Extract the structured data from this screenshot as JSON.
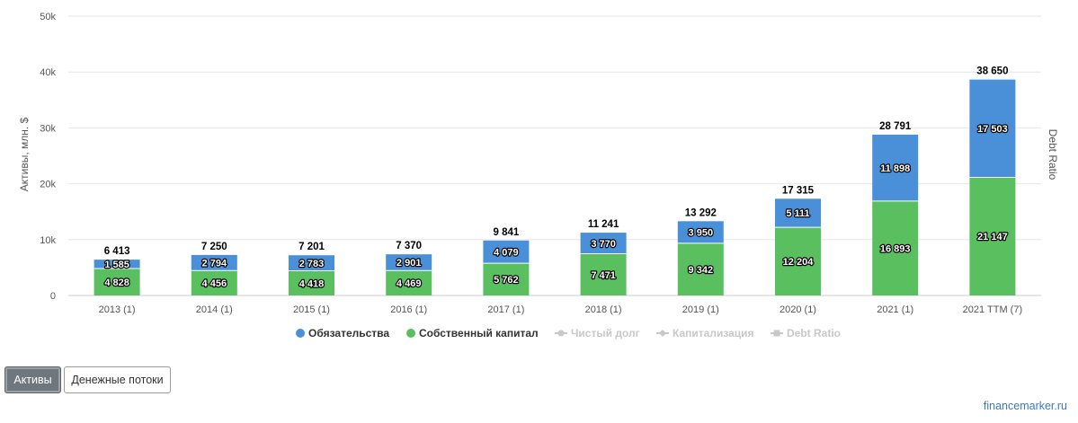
{
  "colors": {
    "liabilities": "#4a90d9",
    "equity": "#5abf5f",
    "inactive_legend": "#c8c8c8",
    "grid": "#e6e6e6",
    "credit_link": "#3a78c3"
  },
  "chart_data": {
    "type": "bar",
    "stacked": true,
    "categories": [
      "2013 (1)",
      "2014 (1)",
      "2015 (1)",
      "2016 (1)",
      "2017 (1)",
      "2018 (1)",
      "2019 (1)",
      "2020 (1)",
      "2021 (1)",
      "2021 TTM (7)"
    ],
    "series": [
      {
        "name": "Собственный капитал",
        "values": [
          4828,
          4456,
          4418,
          4469,
          5762,
          7471,
          9342,
          12204,
          16893,
          21147
        ],
        "labels": [
          "4 828",
          "4 456",
          "4 418",
          "4 469",
          "5 762",
          "7 471",
          "9 342",
          "12 204",
          "16 893",
          "21 147"
        ]
      },
      {
        "name": "Обязательства",
        "values": [
          1585,
          2794,
          2783,
          2901,
          4079,
          3770,
          3950,
          5111,
          11898,
          17503
        ],
        "labels": [
          "1 585",
          "2 794",
          "2 783",
          "2 901",
          "4 079",
          "3 770",
          "3 950",
          "5 111",
          "11 898",
          "17 503"
        ]
      }
    ],
    "totals": [
      6413,
      7250,
      7201,
      7370,
      9841,
      11241,
      13292,
      17315,
      28791,
      38650
    ],
    "total_labels": [
      "6 413",
      "7 250",
      "7 201",
      "7 370",
      "9 841",
      "11 241",
      "13 292",
      "17 315",
      "28 791",
      "38 650"
    ],
    "ylabel": "Активы, млн. $",
    "y2label": "Debt Ratio",
    "ylim": [
      0,
      50000
    ],
    "yticks": [
      0,
      10000,
      20000,
      30000,
      40000,
      50000
    ],
    "ytick_labels": [
      "0",
      "10k",
      "20k",
      "30k",
      "40k",
      "50k"
    ],
    "grid": true,
    "legend_position": "bottom-center",
    "legend": [
      {
        "name": "Обязательства",
        "symbol": "circle",
        "color": "#4a90d9",
        "active": true
      },
      {
        "name": "Собственный капитал",
        "symbol": "circle",
        "color": "#5abf5f",
        "active": true
      },
      {
        "name": "Чистый долг",
        "symbol": "line-circle",
        "color": "#c8c8c8",
        "active": false
      },
      {
        "name": "Капитализация",
        "symbol": "line-diamond",
        "color": "#c8c8c8",
        "active": false
      },
      {
        "name": "Debt Ratio",
        "symbol": "line-square",
        "color": "#c8c8c8",
        "active": false
      }
    ]
  },
  "buttons": {
    "assets_label": "Активы",
    "cashflow_label": "Денежные потоки"
  },
  "footer": {
    "credit": "financemarker.ru"
  }
}
